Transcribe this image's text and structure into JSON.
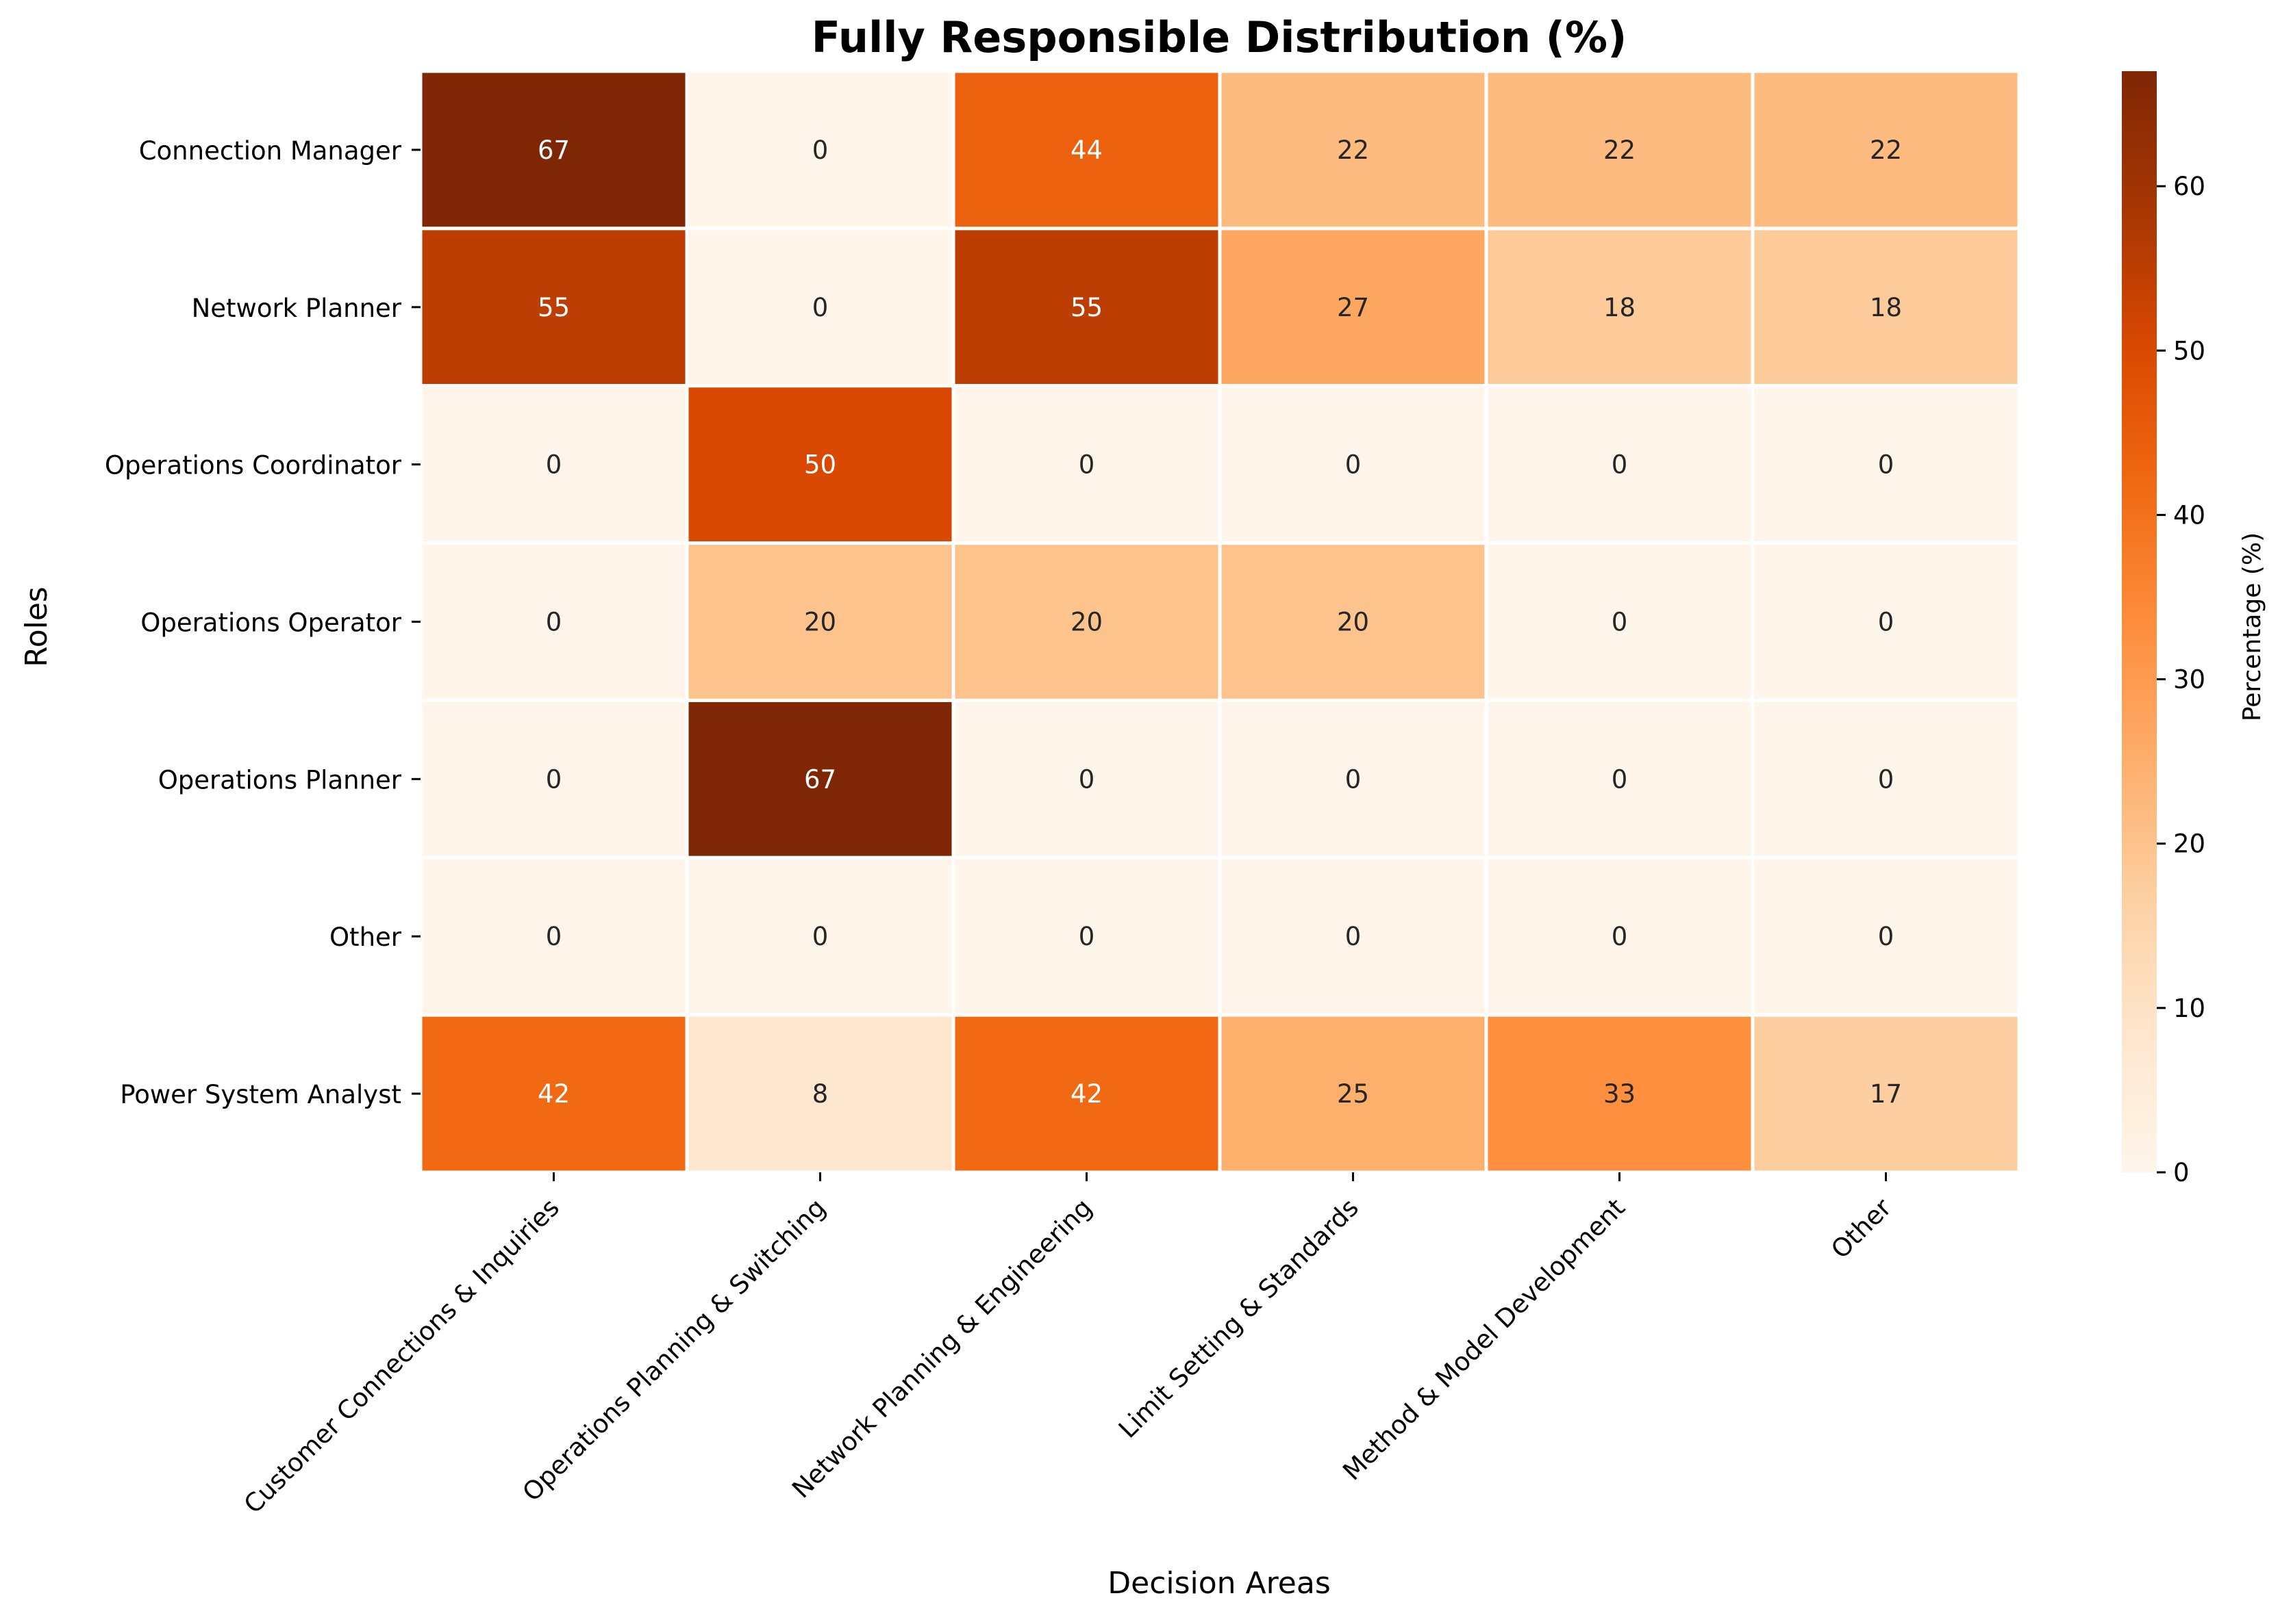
{
  "chart_data": {
    "type": "heatmap",
    "title": "Fully Responsible Distribution (%)",
    "xlabel": "Decision Areas",
    "ylabel": "Roles",
    "x_categories": [
      "Customer Connections & Inquiries",
      "Operations Planning & Switching",
      "Network Planning & Engineering",
      "Limit Setting & Standards",
      "Method & Model Development",
      "Other"
    ],
    "y_categories": [
      "Connection Manager",
      "Network Planner",
      "Operations Coordinator",
      "Operations Operator",
      "Operations Planner",
      "Other",
      "Power System Analyst"
    ],
    "values": [
      [
        67,
        0,
        44,
        22,
        22,
        22
      ],
      [
        55,
        0,
        55,
        27,
        18,
        18
      ],
      [
        0,
        50,
        0,
        0,
        0,
        0
      ],
      [
        0,
        20,
        20,
        20,
        0,
        0
      ],
      [
        0,
        67,
        0,
        0,
        0,
        0
      ],
      [
        0,
        0,
        0,
        0,
        0,
        0
      ],
      [
        42,
        8,
        42,
        25,
        33,
        17
      ]
    ],
    "colorbar": {
      "label": "Percentage (%)",
      "range": [
        0,
        67
      ],
      "ticks": [
        0,
        10,
        20,
        30,
        40,
        50,
        60
      ],
      "colormap": "Oranges"
    },
    "annotation_dark_color": "#262626",
    "annotation_light_color": "#ffffff",
    "grid_line_color": "#ffffff"
  }
}
